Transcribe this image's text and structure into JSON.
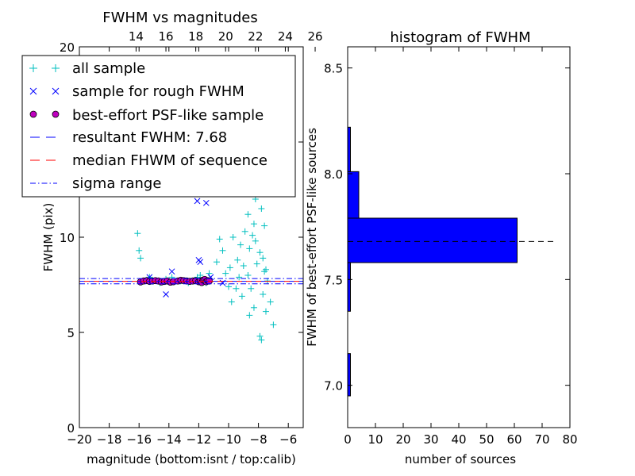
{
  "chart_data": [
    {
      "type": "scatter",
      "title": "FWHM vs magnitudes",
      "xlabel": "magnitude (bottom:isnt / top:calib)",
      "ylabel": "FWHM (pix)",
      "xlim": [
        -20,
        -5
      ],
      "ylim": [
        0,
        20
      ],
      "xticks": [
        -20,
        -18,
        -16,
        -14,
        -12,
        -10,
        -8,
        -6
      ],
      "xtick_labels": [
        "−20",
        "−18",
        "−16",
        "−14",
        "−12",
        "−10",
        "−8",
        "−6"
      ],
      "yticks": [
        0,
        5,
        10,
        15,
        20
      ],
      "ytick_labels": [
        "0",
        "5",
        "10",
        "15",
        "20"
      ],
      "top_xticks": [
        14,
        16,
        18,
        20,
        22,
        24,
        26
      ],
      "top_xtick_labels": [
        "14",
        "16",
        "18",
        "20",
        "22",
        "24",
        "26"
      ],
      "top_axis_offset": 30.2,
      "legend_position": "upper-left",
      "series": [
        {
          "name": "all sample",
          "marker": "+",
          "color": "#00bfbf",
          "points": [
            [
              -16.1,
              10.2
            ],
            [
              -16.0,
              9.3
            ],
            [
              -15.9,
              8.9
            ],
            [
              -15.3,
              7.9
            ],
            [
              -14.6,
              7.6
            ],
            [
              -14.2,
              7.8
            ],
            [
              -13.8,
              7.9
            ],
            [
              -13.2,
              7.7
            ],
            [
              -12.7,
              7.6
            ],
            [
              -12.1,
              7.9
            ],
            [
              -11.9,
              8.0
            ],
            [
              -11.5,
              7.6
            ],
            [
              -11.3,
              8.1
            ],
            [
              -10.8,
              8.7
            ],
            [
              -10.6,
              9.9
            ],
            [
              -10.2,
              8.1
            ],
            [
              -10.0,
              7.4
            ],
            [
              -9.8,
              6.6
            ],
            [
              -9.5,
              7.3
            ],
            [
              -9.3,
              7.9
            ],
            [
              -9.0,
              8.5
            ],
            [
              -8.9,
              10.3
            ],
            [
              -8.7,
              11.2
            ],
            [
              -8.6,
              9.4
            ],
            [
              -8.5,
              12.6
            ],
            [
              -8.4,
              13.8
            ],
            [
              -8.3,
              10.7
            ],
            [
              -8.2,
              12.0
            ],
            [
              -8.1,
              8.6
            ],
            [
              -8.0,
              14.6
            ],
            [
              -7.9,
              9.2
            ],
            [
              -7.8,
              11.5
            ],
            [
              -7.7,
              7.0
            ],
            [
              -7.6,
              8.2
            ],
            [
              -7.5,
              6.1
            ],
            [
              -7.4,
              7.7
            ],
            [
              -7.2,
              6.6
            ],
            [
              -7.0,
              5.4
            ],
            [
              -7.8,
              4.6
            ],
            [
              -7.9,
              4.8
            ],
            [
              -8.3,
              6.3
            ],
            [
              -8.6,
              5.9
            ],
            [
              -9.1,
              6.9
            ],
            [
              -9.4,
              8.8
            ],
            [
              -9.7,
              10.0
            ],
            [
              -8.8,
              12.9
            ],
            [
              -8.2,
              9.8
            ],
            [
              -8.1,
              13.1
            ],
            [
              -8.4,
              10.1
            ],
            [
              -7.6,
              10.6
            ],
            [
              -7.9,
              12.3
            ],
            [
              -8.7,
              8.0
            ],
            [
              -9.2,
              9.6
            ],
            [
              -10.4,
              9.3
            ],
            [
              -8.0,
              18.2
            ],
            [
              -8.2,
              16.5
            ],
            [
              -8.4,
              17.1
            ],
            [
              -9.0,
              14.9
            ],
            [
              -9.5,
              15.8
            ],
            [
              -7.7,
              8.9
            ],
            [
              -7.5,
              8.3
            ],
            [
              -8.5,
              7.3
            ],
            [
              -9.9,
              8.4
            ],
            [
              -8.9,
              16.2
            ],
            [
              -9.3,
              12.4
            ]
          ]
        },
        {
          "name": "sample for rough FWHM",
          "marker": "x",
          "color": "#0000ff",
          "points": [
            [
              -14.2,
              7.0
            ],
            [
              -13.8,
              8.2
            ],
            [
              -12.0,
              8.8
            ],
            [
              -11.9,
              8.7
            ],
            [
              -12.1,
              11.9
            ],
            [
              -11.5,
              11.8
            ],
            [
              -15.3,
              7.9
            ],
            [
              -13.1,
              7.7
            ],
            [
              -11.2,
              7.9
            ],
            [
              -10.4,
              7.6
            ]
          ]
        },
        {
          "name": "best-effort PSF-like sample",
          "marker": "o",
          "color": "#bf00bf",
          "points": [
            [
              -15.9,
              7.65
            ],
            [
              -15.7,
              7.7
            ],
            [
              -15.5,
              7.72
            ],
            [
              -15.3,
              7.68
            ],
            [
              -15.1,
              7.7
            ],
            [
              -14.9,
              7.72
            ],
            [
              -14.7,
              7.7
            ],
            [
              -14.5,
              7.65
            ],
            [
              -14.3,
              7.68
            ],
            [
              -14.1,
              7.7
            ],
            [
              -13.9,
              7.64
            ],
            [
              -13.7,
              7.66
            ],
            [
              -13.4,
              7.7
            ],
            [
              -13.2,
              7.74
            ],
            [
              -13.0,
              7.72
            ],
            [
              -12.8,
              7.7
            ],
            [
              -12.6,
              7.68
            ],
            [
              -12.4,
              7.7
            ],
            [
              -12.2,
              7.72
            ],
            [
              -12.0,
              7.66
            ],
            [
              -11.9,
              7.7
            ],
            [
              -11.8,
              7.62
            ],
            [
              -11.7,
              7.75
            ],
            [
              -11.6,
              7.78
            ],
            [
              -11.5,
              7.66
            ],
            [
              -11.4,
              7.72
            ],
            [
              -11.3,
              7.7
            ]
          ]
        }
      ],
      "lines": [
        {
          "name": "resultant FWHM: 7.68",
          "y": 7.68,
          "color": "#0000ff",
          "style": "dashed"
        },
        {
          "name": "median FHWM of sequence",
          "y": 7.68,
          "color": "#ff0000",
          "style": "dashed"
        },
        {
          "name": "sigma range",
          "y": 7.83,
          "color": "#0000ff",
          "style": "dashdot"
        },
        {
          "name": "",
          "y": 7.55,
          "color": "#0000ff",
          "style": "dashdot"
        }
      ]
    },
    {
      "type": "bar",
      "orientation": "horizontal",
      "title": "histogram of FWHM",
      "xlabel": "number of sources",
      "ylabel": "FWHM of best-effort PSF-like sources",
      "xlim": [
        0,
        80
      ],
      "ylim": [
        6.8,
        8.6
      ],
      "xticks": [
        0,
        10,
        20,
        30,
        40,
        50,
        60,
        70,
        80
      ],
      "xtick_labels": [
        "0",
        "10",
        "20",
        "30",
        "40",
        "50",
        "60",
        "70",
        "80"
      ],
      "yticks": [
        7.0,
        7.5,
        8.0,
        8.5
      ],
      "ytick_labels": [
        "7.0",
        "7.5",
        "8.0",
        "8.5"
      ],
      "bars": [
        {
          "y0": 6.95,
          "y1": 7.15,
          "count": 1
        },
        {
          "y0": 7.35,
          "y1": 7.58,
          "count": 1
        },
        {
          "y0": 7.58,
          "y1": 7.79,
          "count": 61
        },
        {
          "y0": 7.79,
          "y1": 8.01,
          "count": 4
        },
        {
          "y0": 8.01,
          "y1": 8.22,
          "count": 1
        }
      ],
      "bar_color": "#0000ff",
      "reference_line": {
        "y": 7.68,
        "x_range": [
          0,
          74
        ],
        "color": "#000000",
        "style": "dashed"
      }
    }
  ]
}
